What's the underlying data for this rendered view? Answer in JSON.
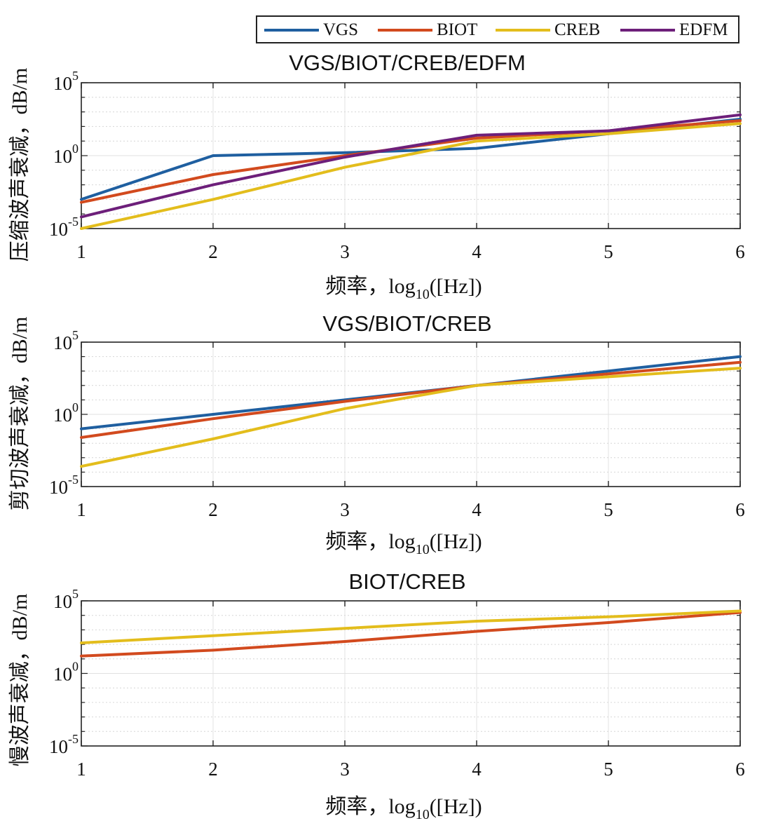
{
  "legend": [
    {
      "name": "VGS",
      "color": "#1f5fa0"
    },
    {
      "name": "BIOT",
      "color": "#d24a1e"
    },
    {
      "name": "CREB",
      "color": "#e3bd1c"
    },
    {
      "name": "EDFM",
      "color": "#6d1f7a"
    }
  ],
  "chart_data": [
    {
      "type": "line",
      "title": "VGS/BIOT/CREB/EDFM",
      "xlabel_main": "频率，log",
      "xlabel_sub": "10",
      "xlabel_tail": "([Hz])",
      "ylabel": "压缩波声衰减，dB/m",
      "yscale": "log10",
      "ylim_exp": [
        -5,
        5
      ],
      "xlim": [
        1,
        6
      ],
      "xticks": [
        "1",
        "2",
        "3",
        "4",
        "5",
        "6"
      ],
      "yticks": [
        {
          "base": "10",
          "exp": "5",
          "value": 5
        },
        {
          "base": "10",
          "exp": "0",
          "value": 0
        },
        {
          "base": "10",
          "exp": "-5",
          "value": -5
        }
      ],
      "grid": true,
      "x": [
        1,
        2,
        3,
        4,
        5,
        6
      ],
      "series": [
        {
          "name": "VGS",
          "log10_values": [
            -3.0,
            0.0,
            0.2,
            0.5,
            1.5,
            2.5
          ]
        },
        {
          "name": "BIOT",
          "log10_values": [
            -3.2,
            -1.3,
            0.0,
            1.2,
            1.7,
            2.4
          ]
        },
        {
          "name": "CREB",
          "log10_values": [
            -5.0,
            -3.0,
            -0.8,
            1.0,
            1.5,
            2.2
          ]
        },
        {
          "name": "EDFM",
          "log10_values": [
            -4.2,
            -2.0,
            -0.1,
            1.4,
            1.7,
            2.8
          ]
        }
      ]
    },
    {
      "type": "line",
      "title": "VGS/BIOT/CREB",
      "xlabel_main": "频率，log",
      "xlabel_sub": "10",
      "xlabel_tail": "([Hz])",
      "ylabel": "剪切波声衰减，dB/m",
      "yscale": "log10",
      "ylim_exp": [
        -5,
        5
      ],
      "xlim": [
        1,
        6
      ],
      "xticks": [
        "1",
        "2",
        "3",
        "4",
        "5",
        "6"
      ],
      "yticks": [
        {
          "base": "10",
          "exp": "5",
          "value": 5
        },
        {
          "base": "10",
          "exp": "0",
          "value": 0
        },
        {
          "base": "10",
          "exp": "-5",
          "value": -5
        }
      ],
      "grid": true,
      "x": [
        1,
        2,
        3,
        4,
        5,
        6
      ],
      "series": [
        {
          "name": "VGS",
          "log10_values": [
            -1.0,
            0.0,
            1.0,
            2.0,
            3.0,
            4.0
          ]
        },
        {
          "name": "BIOT",
          "log10_values": [
            -1.6,
            -0.3,
            0.9,
            2.0,
            2.8,
            3.6
          ]
        },
        {
          "name": "CREB",
          "log10_values": [
            -3.6,
            -1.7,
            0.4,
            2.0,
            2.6,
            3.2
          ]
        }
      ]
    },
    {
      "type": "line",
      "title": "BIOT/CREB",
      "xlabel_main": "频率，log",
      "xlabel_sub": "10",
      "xlabel_tail": "([Hz])",
      "ylabel": "慢波声衰减，dB/m",
      "yscale": "log10",
      "ylim_exp": [
        -5,
        5
      ],
      "xlim": [
        1,
        6
      ],
      "xticks": [
        "1",
        "2",
        "3",
        "4",
        "5",
        "6"
      ],
      "yticks": [
        {
          "base": "10",
          "exp": "5",
          "value": 5
        },
        {
          "base": "10",
          "exp": "0",
          "value": 0
        },
        {
          "base": "10",
          "exp": "-5",
          "value": -5
        }
      ],
      "grid": true,
      "x": [
        1,
        2,
        3,
        4,
        5,
        6
      ],
      "series": [
        {
          "name": "BIOT",
          "log10_values": [
            1.2,
            1.6,
            2.2,
            2.9,
            3.5,
            4.2
          ]
        },
        {
          "name": "CREB",
          "log10_values": [
            2.1,
            2.6,
            3.1,
            3.6,
            3.9,
            4.3
          ]
        }
      ]
    }
  ]
}
